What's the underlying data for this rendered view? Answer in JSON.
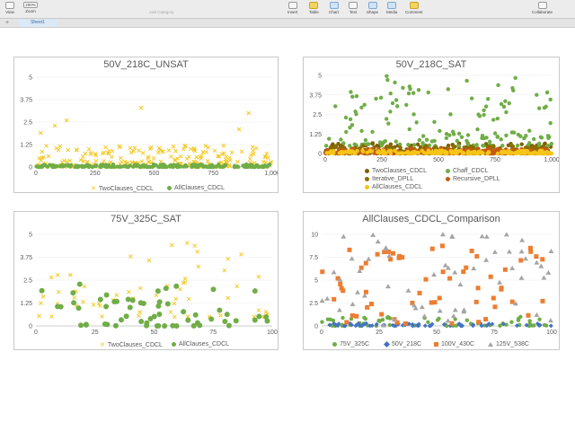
{
  "toolbar": {
    "view": "View",
    "zoom_value": "200%",
    "zoom": "Zoom",
    "add_category": "Add Category",
    "insert": "Insert",
    "table": "Table",
    "chart": "Chart",
    "text": "Text",
    "shape": "Shape",
    "media": "Media",
    "comment": "Comment",
    "collaborate": "Collaborate"
  },
  "tabs": {
    "add": "+",
    "sheet": "Sheet1"
  },
  "colors": {
    "yellow": "#f5c518",
    "green": "#70ad47",
    "olive": "#7f6000",
    "orange": "#ed7d31",
    "blue": "#4472c4",
    "gray": "#a5a5a5",
    "darkgreen": "#548235"
  },
  "chart_data": [
    {
      "type": "scatter",
      "title": "50V_218C_UNSAT",
      "xlim": [
        0,
        1000
      ],
      "ylim": [
        0,
        5
      ],
      "xticks": [
        "0",
        "250",
        "500",
        "750",
        "1,000"
      ],
      "yticks": [
        "0",
        "1.25",
        "2.5",
        "3.75",
        "5"
      ],
      "series": [
        {
          "name": "TwoClauses_CDCL",
          "marker": "x",
          "color": "#f5c518",
          "y_range": [
            0,
            1.2
          ],
          "outliers": [
            [
              445,
              3.3
            ],
            [
              900,
              3.0
            ],
            [
              20,
              1.9
            ],
            [
              80,
              2.3
            ],
            [
              130,
              2.6
            ],
            [
              860,
              2.1
            ]
          ]
        },
        {
          "name": "AllClauses_CDCL",
          "marker": "dot",
          "color": "#70ad47",
          "y_range": [
            0,
            0.15
          ]
        }
      ]
    },
    {
      "type": "scatter",
      "title": "50V_218C_SAT",
      "xlim": [
        0,
        1000
      ],
      "ylim": [
        0,
        5
      ],
      "xticks": [
        "0",
        "250",
        "500",
        "750",
        "1,000"
      ],
      "yticks": [
        "0",
        "1.25",
        "2.5",
        "3.75",
        "5"
      ],
      "series": [
        {
          "name": "TwoClauses_CDCL",
          "marker": "dot",
          "color": "#7f6000",
          "y_range": [
            0,
            0.7
          ]
        },
        {
          "name": "Chaff_CDCL",
          "marker": "dot",
          "color": "#70ad47",
          "y_range": [
            0.5,
            5
          ]
        },
        {
          "name": "Iterative_DPLL",
          "marker": "dot",
          "color": "#8b6d00",
          "y_range": [
            0,
            0.5
          ]
        },
        {
          "name": "Recursive_DPLL",
          "marker": "dot",
          "color": "#c55a11",
          "y_range": [
            0,
            0.3
          ]
        },
        {
          "name": "AllClauses_CDCL",
          "marker": "dot",
          "color": "#f5c518",
          "y_range": [
            0,
            0.2
          ]
        }
      ]
    },
    {
      "type": "scatter",
      "title": "75V_325C_SAT",
      "xlim": [
        0,
        100
      ],
      "ylim": [
        0,
        5
      ],
      "xticks": [
        "0",
        "25",
        "50",
        "75",
        "100"
      ],
      "yticks": [
        "0",
        "1.25",
        "2.5",
        "3.75",
        "5"
      ],
      "series": [
        {
          "name": "TwoClauses_CDCL",
          "marker": "x",
          "color": "#f5c518",
          "y_range": [
            0.5,
            4.6
          ]
        },
        {
          "name": "AllClauses_CDCL",
          "marker": "dot",
          "color": "#70ad47",
          "y_range": [
            0,
            2.3
          ]
        }
      ]
    },
    {
      "type": "scatter",
      "title": "AllClauses_CDCL_Comparison",
      "xlim": [
        0,
        100
      ],
      "ylim": [
        0,
        10
      ],
      "xticks": [
        "0",
        "25",
        "50",
        "75",
        "100"
      ],
      "yticks": [
        "0",
        "2.5",
        "5",
        "7.5",
        "10"
      ],
      "series": [
        {
          "name": "75V_325C",
          "marker": "dot",
          "color": "#70ad47",
          "y_range": [
            0,
            1
          ]
        },
        {
          "name": "50V_218C",
          "marker": "diamond",
          "color": "#4472c4",
          "y_range": [
            0,
            0.3
          ]
        },
        {
          "name": "100V_430C",
          "marker": "square",
          "color": "#ed7d31",
          "y_range": [
            0,
            8.8
          ]
        },
        {
          "name": "125V_538C",
          "marker": "triangle",
          "color": "#a5a5a5",
          "y_range": [
            0,
            10
          ]
        }
      ]
    }
  ]
}
